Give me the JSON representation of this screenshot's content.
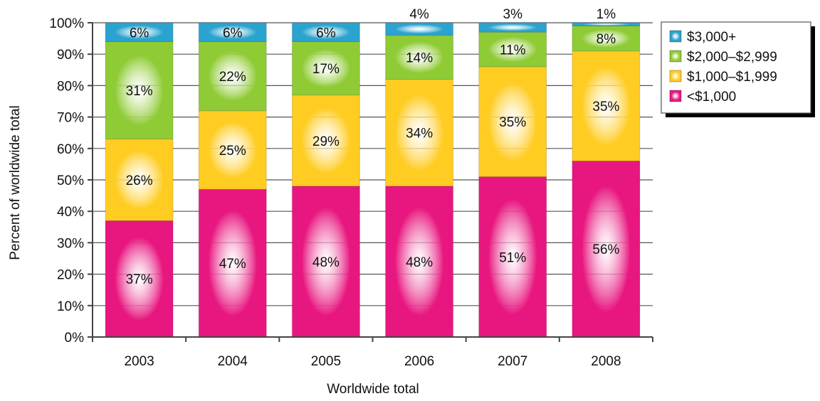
{
  "chart_data": {
    "type": "bar",
    "stacked": true,
    "categories": [
      "2003",
      "2004",
      "2005",
      "2006",
      "2007",
      "2008"
    ],
    "series": [
      {
        "name": "<$1,000",
        "values": [
          37,
          47,
          48,
          48,
          51,
          56
        ],
        "color": "#e8177f"
      },
      {
        "name": "$1,000–$1,999",
        "values": [
          26,
          25,
          29,
          34,
          35,
          35
        ],
        "color": "#ffcc22"
      },
      {
        "name": "$2,000–$2,999",
        "values": [
          31,
          22,
          17,
          14,
          11,
          8
        ],
        "color": "#8fcb35"
      },
      {
        "name": "$3,000+",
        "values": [
          6,
          6,
          6,
          4,
          3,
          1
        ],
        "color": "#2aa3cf"
      }
    ],
    "data_labels": [
      [
        "37%",
        "47%",
        "48%",
        "48%",
        "51%",
        "56%"
      ],
      [
        "26%",
        "25%",
        "29%",
        "34%",
        "35%",
        "35%"
      ],
      [
        "31%",
        "22%",
        "17%",
        "14%",
        "11%",
        "8%"
      ],
      [
        "6%",
        "6%",
        "6%",
        "4%",
        "3%",
        "1%"
      ]
    ],
    "yticks": [
      "0%",
      "10%",
      "20%",
      "30%",
      "40%",
      "50%",
      "60%",
      "70%",
      "80%",
      "90%",
      "100%"
    ],
    "ylim": [
      0,
      100
    ],
    "xlabel": "Worldwide total",
    "ylabel": "Percent of worldwide total",
    "legend": {
      "position": "right",
      "order": [
        "$3,000+",
        "$2,000–$2,999",
        "$1,000–$1,999",
        "<$1,000"
      ]
    },
    "grid": true,
    "axis_color": "#444444",
    "grid_color": "#555555"
  }
}
